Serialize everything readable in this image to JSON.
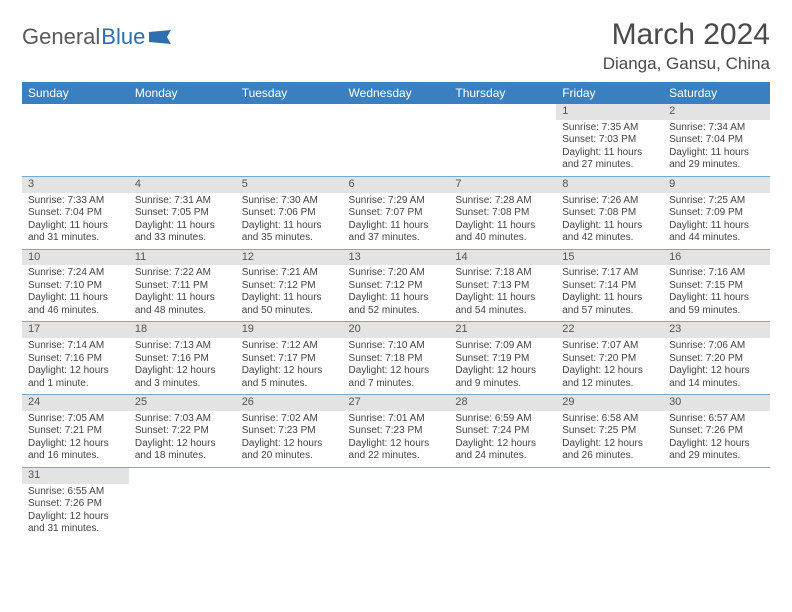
{
  "logo": {
    "part1": "General",
    "part2": "Blue"
  },
  "title": "March 2024",
  "location": "Dianga, Gansu, China",
  "colors": {
    "header_bg": "#3a80c0",
    "header_text": "#ffffff",
    "daynum_bg": "#e3e3e3",
    "rule": "#7aa7cc",
    "body_text": "#444444",
    "title_text": "#4a4a4a",
    "logo_blue": "#2d6fb0"
  },
  "weekdays": [
    "Sunday",
    "Monday",
    "Tuesday",
    "Wednesday",
    "Thursday",
    "Friday",
    "Saturday"
  ],
  "weeks": [
    [
      {
        "n": "",
        "sr": "",
        "ss": "",
        "dl": ""
      },
      {
        "n": "",
        "sr": "",
        "ss": "",
        "dl": ""
      },
      {
        "n": "",
        "sr": "",
        "ss": "",
        "dl": ""
      },
      {
        "n": "",
        "sr": "",
        "ss": "",
        "dl": ""
      },
      {
        "n": "",
        "sr": "",
        "ss": "",
        "dl": ""
      },
      {
        "n": "1",
        "sr": "Sunrise: 7:35 AM",
        "ss": "Sunset: 7:03 PM",
        "dl": "Daylight: 11 hours and 27 minutes."
      },
      {
        "n": "2",
        "sr": "Sunrise: 7:34 AM",
        "ss": "Sunset: 7:04 PM",
        "dl": "Daylight: 11 hours and 29 minutes."
      }
    ],
    [
      {
        "n": "3",
        "sr": "Sunrise: 7:33 AM",
        "ss": "Sunset: 7:04 PM",
        "dl": "Daylight: 11 hours and 31 minutes."
      },
      {
        "n": "4",
        "sr": "Sunrise: 7:31 AM",
        "ss": "Sunset: 7:05 PM",
        "dl": "Daylight: 11 hours and 33 minutes."
      },
      {
        "n": "5",
        "sr": "Sunrise: 7:30 AM",
        "ss": "Sunset: 7:06 PM",
        "dl": "Daylight: 11 hours and 35 minutes."
      },
      {
        "n": "6",
        "sr": "Sunrise: 7:29 AM",
        "ss": "Sunset: 7:07 PM",
        "dl": "Daylight: 11 hours and 37 minutes."
      },
      {
        "n": "7",
        "sr": "Sunrise: 7:28 AM",
        "ss": "Sunset: 7:08 PM",
        "dl": "Daylight: 11 hours and 40 minutes."
      },
      {
        "n": "8",
        "sr": "Sunrise: 7:26 AM",
        "ss": "Sunset: 7:08 PM",
        "dl": "Daylight: 11 hours and 42 minutes."
      },
      {
        "n": "9",
        "sr": "Sunrise: 7:25 AM",
        "ss": "Sunset: 7:09 PM",
        "dl": "Daylight: 11 hours and 44 minutes."
      }
    ],
    [
      {
        "n": "10",
        "sr": "Sunrise: 7:24 AM",
        "ss": "Sunset: 7:10 PM",
        "dl": "Daylight: 11 hours and 46 minutes."
      },
      {
        "n": "11",
        "sr": "Sunrise: 7:22 AM",
        "ss": "Sunset: 7:11 PM",
        "dl": "Daylight: 11 hours and 48 minutes."
      },
      {
        "n": "12",
        "sr": "Sunrise: 7:21 AM",
        "ss": "Sunset: 7:12 PM",
        "dl": "Daylight: 11 hours and 50 minutes."
      },
      {
        "n": "13",
        "sr": "Sunrise: 7:20 AM",
        "ss": "Sunset: 7:12 PM",
        "dl": "Daylight: 11 hours and 52 minutes."
      },
      {
        "n": "14",
        "sr": "Sunrise: 7:18 AM",
        "ss": "Sunset: 7:13 PM",
        "dl": "Daylight: 11 hours and 54 minutes."
      },
      {
        "n": "15",
        "sr": "Sunrise: 7:17 AM",
        "ss": "Sunset: 7:14 PM",
        "dl": "Daylight: 11 hours and 57 minutes."
      },
      {
        "n": "16",
        "sr": "Sunrise: 7:16 AM",
        "ss": "Sunset: 7:15 PM",
        "dl": "Daylight: 11 hours and 59 minutes."
      }
    ],
    [
      {
        "n": "17",
        "sr": "Sunrise: 7:14 AM",
        "ss": "Sunset: 7:16 PM",
        "dl": "Daylight: 12 hours and 1 minute."
      },
      {
        "n": "18",
        "sr": "Sunrise: 7:13 AM",
        "ss": "Sunset: 7:16 PM",
        "dl": "Daylight: 12 hours and 3 minutes."
      },
      {
        "n": "19",
        "sr": "Sunrise: 7:12 AM",
        "ss": "Sunset: 7:17 PM",
        "dl": "Daylight: 12 hours and 5 minutes."
      },
      {
        "n": "20",
        "sr": "Sunrise: 7:10 AM",
        "ss": "Sunset: 7:18 PM",
        "dl": "Daylight: 12 hours and 7 minutes."
      },
      {
        "n": "21",
        "sr": "Sunrise: 7:09 AM",
        "ss": "Sunset: 7:19 PM",
        "dl": "Daylight: 12 hours and 9 minutes."
      },
      {
        "n": "22",
        "sr": "Sunrise: 7:07 AM",
        "ss": "Sunset: 7:20 PM",
        "dl": "Daylight: 12 hours and 12 minutes."
      },
      {
        "n": "23",
        "sr": "Sunrise: 7:06 AM",
        "ss": "Sunset: 7:20 PM",
        "dl": "Daylight: 12 hours and 14 minutes."
      }
    ],
    [
      {
        "n": "24",
        "sr": "Sunrise: 7:05 AM",
        "ss": "Sunset: 7:21 PM",
        "dl": "Daylight: 12 hours and 16 minutes."
      },
      {
        "n": "25",
        "sr": "Sunrise: 7:03 AM",
        "ss": "Sunset: 7:22 PM",
        "dl": "Daylight: 12 hours and 18 minutes."
      },
      {
        "n": "26",
        "sr": "Sunrise: 7:02 AM",
        "ss": "Sunset: 7:23 PM",
        "dl": "Daylight: 12 hours and 20 minutes."
      },
      {
        "n": "27",
        "sr": "Sunrise: 7:01 AM",
        "ss": "Sunset: 7:23 PM",
        "dl": "Daylight: 12 hours and 22 minutes."
      },
      {
        "n": "28",
        "sr": "Sunrise: 6:59 AM",
        "ss": "Sunset: 7:24 PM",
        "dl": "Daylight: 12 hours and 24 minutes."
      },
      {
        "n": "29",
        "sr": "Sunrise: 6:58 AM",
        "ss": "Sunset: 7:25 PM",
        "dl": "Daylight: 12 hours and 26 minutes."
      },
      {
        "n": "30",
        "sr": "Sunrise: 6:57 AM",
        "ss": "Sunset: 7:26 PM",
        "dl": "Daylight: 12 hours and 29 minutes."
      }
    ],
    [
      {
        "n": "31",
        "sr": "Sunrise: 6:55 AM",
        "ss": "Sunset: 7:26 PM",
        "dl": "Daylight: 12 hours and 31 minutes."
      },
      {
        "n": "",
        "sr": "",
        "ss": "",
        "dl": ""
      },
      {
        "n": "",
        "sr": "",
        "ss": "",
        "dl": ""
      },
      {
        "n": "",
        "sr": "",
        "ss": "",
        "dl": ""
      },
      {
        "n": "",
        "sr": "",
        "ss": "",
        "dl": ""
      },
      {
        "n": "",
        "sr": "",
        "ss": "",
        "dl": ""
      },
      {
        "n": "",
        "sr": "",
        "ss": "",
        "dl": ""
      }
    ]
  ]
}
